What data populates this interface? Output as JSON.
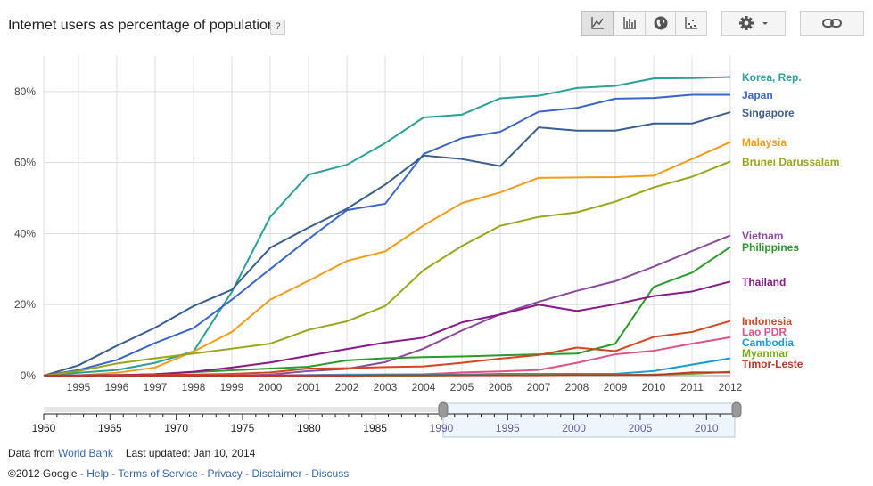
{
  "title": "Internet users as percentage of population",
  "help_label": "?",
  "toolbar": {
    "chart_types": [
      "line-chart-icon",
      "bar-chart-icon",
      "map-globe-icon",
      "scatter-chart-icon"
    ],
    "settings_icon": "gear-icon",
    "link_icon": "link-icon"
  },
  "footer": {
    "data_from": "Data from",
    "source": "World Bank",
    "last_updated": "Last updated: Jan 10, 2014",
    "copyright": "©2012 Google",
    "links": [
      "Help",
      "Terms of Service",
      "Privacy",
      "Disclaimer",
      "Discuss"
    ]
  },
  "timeline": {
    "range": [
      1960,
      2012
    ],
    "selected": [
      1990,
      2012
    ],
    "ticks": [
      "1960",
      "1965",
      "1970",
      "1975",
      "1980",
      "1985",
      "1990",
      "1995",
      "2000",
      "2005",
      "2010"
    ]
  },
  "chart_data": {
    "type": "line",
    "title": "Internet users as percentage of population",
    "x": [
      1990,
      1995,
      1996,
      1997,
      1998,
      1999,
      2000,
      2001,
      2002,
      2003,
      2004,
      2005,
      2006,
      2007,
      2008,
      2009,
      2010,
      2011,
      2012
    ],
    "x_tick_labels": [
      "1995",
      "1996",
      "1997",
      "1998",
      "1999",
      "2000",
      "2001",
      "2002",
      "2003",
      "2004",
      "2005",
      "2006",
      "2007",
      "2008",
      "2009",
      "2010",
      "2011",
      "2012"
    ],
    "y_ticks": [
      "0%",
      "20%",
      "40%",
      "60%",
      "80%"
    ],
    "ylim": [
      0,
      90
    ],
    "grid": true,
    "legend": "right",
    "series": [
      {
        "name": "Korea, Rep.",
        "color": "#2aa198",
        "values": [
          0.0,
          0.8,
          1.6,
          3.6,
          6.8,
          23.6,
          44.7,
          56.6,
          59.4,
          65.5,
          72.7,
          73.5,
          78.1,
          78.8,
          81.0,
          81.6,
          83.7,
          83.8,
          84.1
        ]
      },
      {
        "name": "Japan",
        "color": "#3a66c9",
        "values": [
          0.0,
          1.6,
          4.4,
          9.2,
          13.4,
          21.4,
          30.0,
          38.5,
          46.6,
          48.4,
          62.4,
          66.9,
          68.7,
          74.3,
          75.4,
          78.0,
          78.2,
          79.1,
          79.1
        ]
      },
      {
        "name": "Singapore",
        "color": "#3a5f8f",
        "values": [
          0.0,
          2.9,
          8.4,
          13.5,
          19.6,
          24.2,
          36.0,
          41.7,
          47.0,
          53.8,
          62.0,
          61.0,
          59.0,
          69.9,
          69.0,
          69.0,
          71.0,
          71.0,
          74.2
        ]
      },
      {
        "name": "Malaysia",
        "color": "#f59b1a",
        "values": [
          0.0,
          0.1,
          0.8,
          2.3,
          6.8,
          12.3,
          21.4,
          26.7,
          32.3,
          35.0,
          42.3,
          48.6,
          51.6,
          55.7,
          55.8,
          55.9,
          56.3,
          61.0,
          65.8
        ]
      },
      {
        "name": "Brunei Darussalam",
        "color": "#9aa61a",
        "values": [
          0.0,
          1.3,
          3.4,
          4.9,
          6.2,
          7.6,
          9.0,
          12.9,
          15.3,
          19.6,
          29.7,
          36.5,
          42.2,
          44.7,
          46.0,
          49.0,
          53.0,
          56.0,
          60.3
        ]
      },
      {
        "name": "Vietnam",
        "color": "#8c4a9c",
        "values": [
          0.0,
          0.0,
          0.0,
          0.0,
          0.0,
          0.0,
          0.3,
          1.3,
          1.9,
          3.8,
          7.6,
          12.7,
          17.3,
          20.8,
          23.9,
          26.6,
          30.7,
          35.1,
          39.5
        ]
      },
      {
        "name": "Philippines",
        "color": "#2a9a2a",
        "values": [
          0.0,
          0.0,
          0.1,
          0.4,
          1.0,
          1.5,
          2.0,
          2.5,
          4.3,
          4.9,
          5.2,
          5.4,
          5.7,
          6.0,
          6.2,
          9.0,
          25.0,
          29.0,
          36.2
        ]
      },
      {
        "name": "Thailand",
        "color": "#8a1a8a",
        "values": [
          0.0,
          0.1,
          0.2,
          0.4,
          1.1,
          2.3,
          3.7,
          5.6,
          7.5,
          9.3,
          10.7,
          15.0,
          17.2,
          20.0,
          18.2,
          20.1,
          22.4,
          23.7,
          26.5
        ]
      },
      {
        "name": "Indonesia",
        "color": "#d84420",
        "values": [
          0.0,
          0.0,
          0.1,
          0.2,
          0.3,
          0.5,
          0.9,
          2.0,
          2.1,
          2.4,
          2.6,
          3.6,
          4.8,
          5.8,
          7.9,
          6.9,
          10.9,
          12.3,
          15.4
        ]
      },
      {
        "name": "Lao PDR",
        "color": "#e0528a",
        "values": [
          0.0,
          0.0,
          0.0,
          0.0,
          0.0,
          0.1,
          0.1,
          0.2,
          0.3,
          0.3,
          0.4,
          0.9,
          1.2,
          1.6,
          3.6,
          6.0,
          7.0,
          9.0,
          10.8
        ]
      },
      {
        "name": "Cambodia",
        "color": "#1a9ad8",
        "values": [
          0.0,
          0.0,
          0.0,
          0.0,
          0.0,
          0.0,
          0.0,
          0.1,
          0.2,
          0.3,
          0.3,
          0.3,
          0.5,
          0.5,
          0.5,
          0.5,
          1.3,
          3.1,
          4.9
        ]
      },
      {
        "name": "Myanmar",
        "color": "#7aaa1a",
        "values": [
          0.0,
          0.0,
          0.0,
          0.0,
          0.0,
          0.0,
          0.0,
          0.0,
          0.0,
          0.0,
          0.0,
          0.1,
          0.2,
          0.2,
          0.2,
          0.2,
          0.3,
          0.5,
          1.1
        ]
      },
      {
        "name": "Timor-Leste",
        "color": "#b83a2a",
        "values": [
          0.0,
          0.0,
          0.0,
          0.0,
          0.0,
          0.0,
          0.0,
          0.0,
          0.0,
          0.1,
          0.1,
          0.1,
          0.1,
          0.1,
          0.2,
          0.2,
          0.2,
          0.9,
          0.9
        ]
      }
    ]
  }
}
